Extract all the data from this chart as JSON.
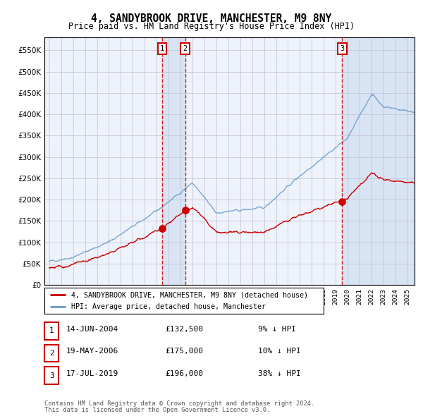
{
  "title": "4, SANDYBROOK DRIVE, MANCHESTER, M9 8NY",
  "subtitle": "Price paid vs. HM Land Registry's House Price Index (HPI)",
  "legend_line1": "4, SANDYBROOK DRIVE, MANCHESTER, M9 8NY (detached house)",
  "legend_line2": "HPI: Average price, detached house, Manchester",
  "footer1": "Contains HM Land Registry data © Crown copyright and database right 2024.",
  "footer2": "This data is licensed under the Open Government Licence v3.0.",
  "transactions": [
    {
      "num": 1,
      "date": "14-JUN-2004",
      "price": 132500,
      "pct": "9%",
      "dir": "↓",
      "x": 2004.45
    },
    {
      "num": 2,
      "date": "19-MAY-2006",
      "price": 175000,
      "pct": "10%",
      "dir": "↓",
      "x": 2006.38
    },
    {
      "num": 3,
      "date": "17-JUL-2019",
      "price": 196000,
      "pct": "38%",
      "dir": "↓",
      "x": 2019.54
    }
  ],
  "hpi_color": "#6699cc",
  "price_color": "#cc0000",
  "bg_color": "#eef2fa",
  "highlight_color": "#d8e4f4",
  "grid_color": "#bbbbcc",
  "ylim": [
    0,
    580000
  ],
  "yticks": [
    0,
    50000,
    100000,
    150000,
    200000,
    250000,
    300000,
    350000,
    400000,
    450000,
    500000,
    550000
  ],
  "xlim_start": 1994.6,
  "xlim_end": 2025.6,
  "sale1_x": 2004.45,
  "sale2_x": 2006.38,
  "sale3_x": 2019.54,
  "sale1_price": 132500,
  "sale2_price": 175000,
  "sale3_price": 196000
}
